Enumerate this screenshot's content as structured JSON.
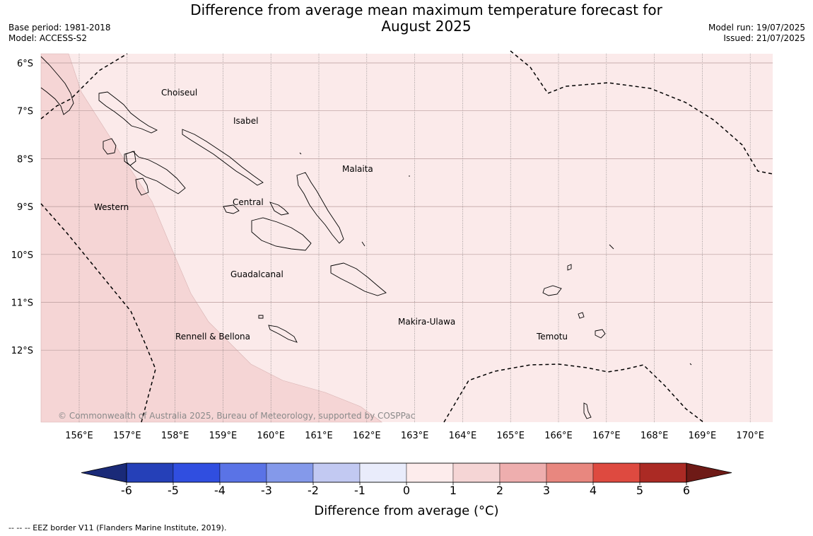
{
  "title_line1": "Difference from average mean maximum temperature forecast for",
  "title_line2": "August 2025",
  "meta": {
    "base_period": "Base period: 1981-2018",
    "model": "Model: ACCESS-S2",
    "model_run": "Model run: 19/07/2025",
    "issued": "Issued: 21/07/2025"
  },
  "map": {
    "lat_labels": [
      "6°S",
      "7°S",
      "8°S",
      "9°S",
      "10°S",
      "11°S",
      "12°S"
    ],
    "lon_labels": [
      "156°E",
      "157°E",
      "158°E",
      "159°E",
      "160°E",
      "161°E",
      "162°E",
      "163°E",
      "164°E",
      "165°E",
      "166°E",
      "167°E",
      "168°E",
      "169°E",
      "170°E"
    ],
    "province_labels": [
      "Choiseul",
      "Isabel",
      "Malaita",
      "Western",
      "Central",
      "Guadalcanal",
      "Makira-Ulawa",
      "Temotu",
      "Rennell & Bellona"
    ],
    "copyright": "© Commonwealth of Australia 2025, Bureau of Meteorology, supported by COSPPac",
    "region_colors": {
      "0_to_1": "#fbeaea",
      "1_to_2": "#f5d5d5"
    }
  },
  "colorbar": {
    "ticks": [
      "-6",
      "-5",
      "-4",
      "-3",
      "-2",
      "-1",
      "0",
      "1",
      "2",
      "3",
      "4",
      "5",
      "6"
    ],
    "colors": [
      "#1a2a78",
      "#2540b8",
      "#304ee0",
      "#5a73e6",
      "#8499ea",
      "#c2c9f2",
      "#e9ecfb",
      "#fdecec",
      "#f5d5d5",
      "#eeaeae",
      "#e8877f",
      "#de4a40",
      "#ab2a24",
      "#6e1a16"
    ],
    "label": "Difference from average (°C)"
  },
  "footnote": "--  --  -- EEZ border V11 (Flanders Marine Institute, 2019)."
}
